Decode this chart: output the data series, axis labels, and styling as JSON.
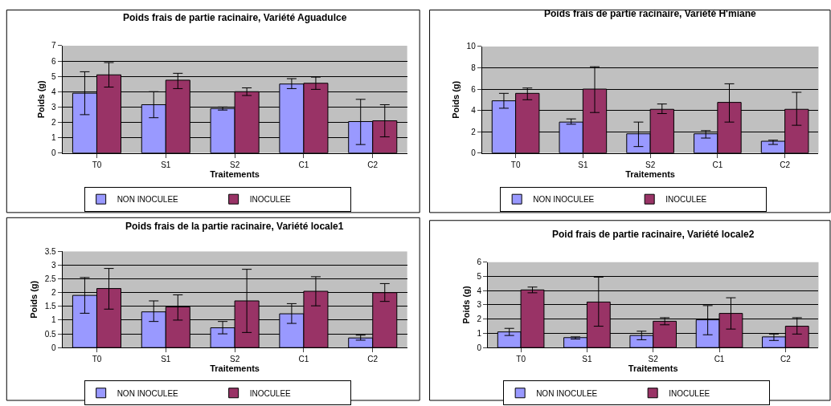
{
  "chart_data": [
    {
      "type": "bar",
      "title": "Poids frais de partie racinaire, Variété Aguadulce",
      "xlabel": "Traitements",
      "ylabel": "Poids (g)",
      "categories": [
        "T0",
        "S1",
        "S2",
        "C1",
        "C2"
      ],
      "ylim": [
        0,
        7
      ],
      "yticks": [
        0,
        1,
        2,
        3,
        4,
        5,
        6,
        7
      ],
      "grid": "y",
      "legend": "bottom",
      "series": [
        {
          "name": "NON INOCULEE",
          "color": "#9999ff",
          "values": [
            3.9,
            3.15,
            2.9,
            4.5,
            2.05
          ],
          "errors": [
            [
              2.5,
              5.3
            ],
            [
              2.3,
              4.0
            ],
            [
              2.8,
              3.0
            ],
            [
              4.2,
              4.85
            ],
            [
              0.55,
              3.5
            ]
          ]
        },
        {
          "name": "INOCULEE",
          "color": "#993366",
          "values": [
            5.1,
            4.75,
            4.0,
            4.55,
            2.1
          ],
          "errors": [
            [
              4.3,
              5.9
            ],
            [
              4.2,
              5.2
            ],
            [
              3.75,
              4.25
            ],
            [
              4.15,
              4.95
            ],
            [
              1.05,
              3.15
            ]
          ]
        }
      ]
    },
    {
      "type": "bar",
      "title": "Poids frais de partie racinaire, Variété H'miane",
      "xlabel": "Traitements",
      "ylabel": "Poids (g)",
      "categories": [
        "T0",
        "S1",
        "S2",
        "C1",
        "C2"
      ],
      "ylim": [
        0,
        10
      ],
      "yticks": [
        0,
        2,
        4,
        6,
        8,
        10
      ],
      "grid": "y",
      "legend": "bottom",
      "series": [
        {
          "name": "NON INOCULEE",
          "color": "#9999ff",
          "values": [
            4.9,
            2.9,
            1.8,
            1.8,
            1.1
          ],
          "errors": [
            [
              4.2,
              5.6
            ],
            [
              2.7,
              3.2
            ],
            [
              0.6,
              2.9
            ],
            [
              1.4,
              2.1
            ],
            [
              0.8,
              1.2
            ]
          ]
        },
        {
          "name": "INOCULEE",
          "color": "#993366",
          "values": [
            5.6,
            6.0,
            4.1,
            4.75,
            4.1
          ],
          "errors": [
            [
              5.0,
              6.1
            ],
            [
              3.8,
              8.1
            ],
            [
              3.7,
              4.6
            ],
            [
              2.9,
              6.5
            ],
            [
              2.6,
              5.7
            ]
          ]
        }
      ]
    },
    {
      "type": "bar",
      "title": "Poids frais de la partie racinaire, Variété locale1",
      "xlabel": "Traitements",
      "ylabel": "Poids (g)",
      "categories": [
        "T0",
        "S1",
        "S2",
        "C1",
        "C2"
      ],
      "ylim": [
        0,
        3.5
      ],
      "yticks": [
        0,
        0.5,
        1,
        1.5,
        2,
        2.5,
        3,
        3.5
      ],
      "grid": "y",
      "legend": "bottom",
      "series": [
        {
          "name": "NON INOCULEE",
          "color": "#9999ff",
          "values": [
            1.9,
            1.3,
            0.72,
            1.23,
            0.35
          ],
          "errors": [
            [
              1.25,
              2.55
            ],
            [
              0.95,
              1.7
            ],
            [
              0.5,
              0.95
            ],
            [
              0.88,
              1.6
            ],
            [
              0.27,
              0.45
            ]
          ]
        },
        {
          "name": "INOCULEE",
          "color": "#993366",
          "values": [
            2.15,
            1.48,
            1.7,
            2.05,
            2.0
          ],
          "errors": [
            [
              1.4,
              2.88
            ],
            [
              1.0,
              1.92
            ],
            [
              0.55,
              2.85
            ],
            [
              1.52,
              2.58
            ],
            [
              1.68,
              2.33
            ]
          ]
        }
      ]
    },
    {
      "type": "bar",
      "title": "Poid frais de partie racinaire, Variété locale2",
      "xlabel": "Traitements",
      "ylabel": "Poids (g)",
      "categories": [
        "T0",
        "S1",
        "S2",
        "C1",
        "C2"
      ],
      "ylim": [
        0,
        6
      ],
      "yticks": [
        0,
        1,
        2,
        3,
        4,
        5,
        6
      ],
      "grid": "y",
      "legend": "bottom",
      "series": [
        {
          "name": "NON INOCULEE",
          "color": "#9999ff",
          "values": [
            1.1,
            0.7,
            0.85,
            1.95,
            0.75
          ],
          "errors": [
            [
              0.85,
              1.35
            ],
            [
              0.6,
              0.75
            ],
            [
              0.55,
              1.15
            ],
            [
              0.9,
              2.95
            ],
            [
              0.5,
              0.95
            ]
          ]
        },
        {
          "name": "INOCULEE",
          "color": "#993366",
          "values": [
            4.05,
            3.2,
            1.85,
            2.4,
            1.5
          ],
          "errors": [
            [
              3.85,
              4.25
            ],
            [
              1.5,
              4.95
            ],
            [
              1.6,
              2.1
            ],
            [
              1.3,
              3.5
            ],
            [
              0.95,
              2.1
            ]
          ]
        }
      ]
    }
  ]
}
